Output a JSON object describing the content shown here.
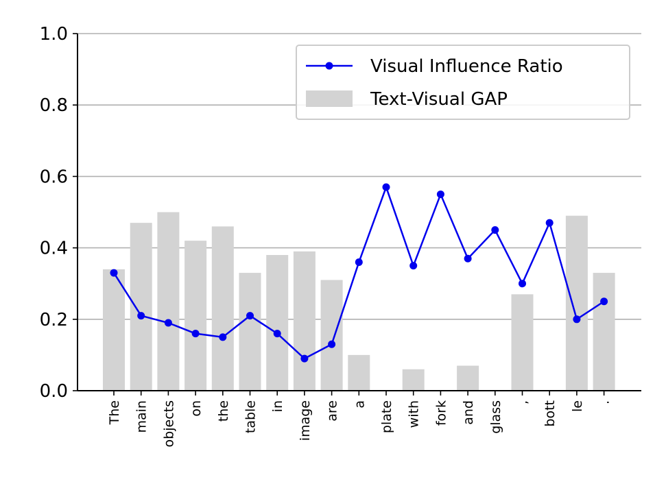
{
  "chart_data": {
    "type": "bar",
    "categories": [
      "The",
      "main",
      "objects",
      "on",
      "the",
      "table",
      "in",
      "image",
      "are",
      "a",
      "plate",
      "with",
      "fork",
      "and",
      "glass",
      ",",
      "bott",
      "le",
      "."
    ],
    "ylim": [
      0,
      1.0
    ],
    "yticks": [
      "0.0",
      "0.2",
      "0.4",
      "0.6",
      "0.8",
      "1.0"
    ],
    "grid": "y",
    "legend_position": "top-right",
    "series": [
      {
        "name": "Visual Influence Ratio",
        "type": "line",
        "color": "#0000ee",
        "values": [
          0.33,
          0.21,
          0.19,
          0.16,
          0.15,
          0.21,
          0.16,
          0.09,
          0.13,
          0.36,
          0.57,
          0.35,
          0.55,
          0.37,
          0.45,
          0.3,
          0.47,
          0.2,
          0.25
        ]
      },
      {
        "name": "Text-Visual GAP",
        "type": "bar",
        "color": "#d3d3d3",
        "values": [
          0.34,
          0.47,
          0.5,
          0.42,
          0.46,
          0.33,
          0.38,
          0.39,
          0.31,
          0.1,
          0.0,
          0.06,
          0.0,
          0.07,
          0.0,
          0.27,
          0.0,
          0.49,
          0.33
        ]
      }
    ]
  }
}
